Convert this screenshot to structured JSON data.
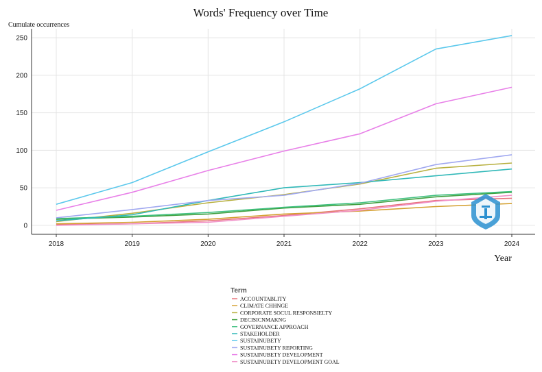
{
  "chart_data": {
    "type": "line",
    "title": "Words' Frequency over Time",
    "xlabel": "Year",
    "ylabel": "Cumulate occurrences",
    "x": [
      2018,
      2019,
      2020,
      2021,
      2022,
      2023,
      2024
    ],
    "ylim": [
      -12,
      262
    ],
    "yticks": [
      0,
      50,
      100,
      150,
      200,
      250
    ],
    "grid": true,
    "legend_title": "Term",
    "legend_position": "bottom-center",
    "series": [
      {
        "name": "ACCOUNTABLITY",
        "color": "#e8747c",
        "values": [
          1,
          2,
          6,
          13,
          22,
          33,
          36
        ]
      },
      {
        "name": "CLIMATE CHHNGE",
        "color": "#d4a030",
        "values": [
          2,
          4,
          8,
          15,
          19,
          25,
          29
        ]
      },
      {
        "name": "CORPORATE SOCUL RESPONSIELTY",
        "color": "#b8b040",
        "values": [
          5,
          16,
          30,
          41,
          55,
          76,
          83
        ]
      },
      {
        "name": "DECISICNMAKNG",
        "color": "#40a040",
        "values": [
          8,
          11,
          15,
          23,
          28,
          38,
          44
        ]
      },
      {
        "name": "GOVERNANCE APPROACH",
        "color": "#40c080",
        "values": [
          9,
          12,
          17,
          24,
          30,
          40,
          45
        ]
      },
      {
        "name": "STAKEHOLDER",
        "color": "#30b8b8",
        "values": [
          6,
          14,
          33,
          50,
          57,
          66,
          75
        ]
      },
      {
        "name": "SUSTAINUBETY",
        "color": "#5bc8ec",
        "values": [
          28,
          57,
          98,
          138,
          182,
          235,
          253
        ]
      },
      {
        "name": "SUSTAINUBETY REPORTING",
        "color": "#a0a8f0",
        "values": [
          10,
          21,
          33,
          40,
          56,
          81,
          94
        ]
      },
      {
        "name": "SUSTAINUBETY DEVELOPMENT",
        "color": "#e880e8",
        "values": [
          20,
          44,
          73,
          99,
          122,
          162,
          184
        ]
      },
      {
        "name": "SUSTAINUBETY DEVELOPMENT GOAL",
        "color": "#f090c8",
        "values": [
          0,
          2,
          4,
          12,
          20,
          32,
          40
        ]
      }
    ]
  },
  "watermark": {
    "icon": "shield-logo-icon",
    "color": "#2a90d0"
  }
}
